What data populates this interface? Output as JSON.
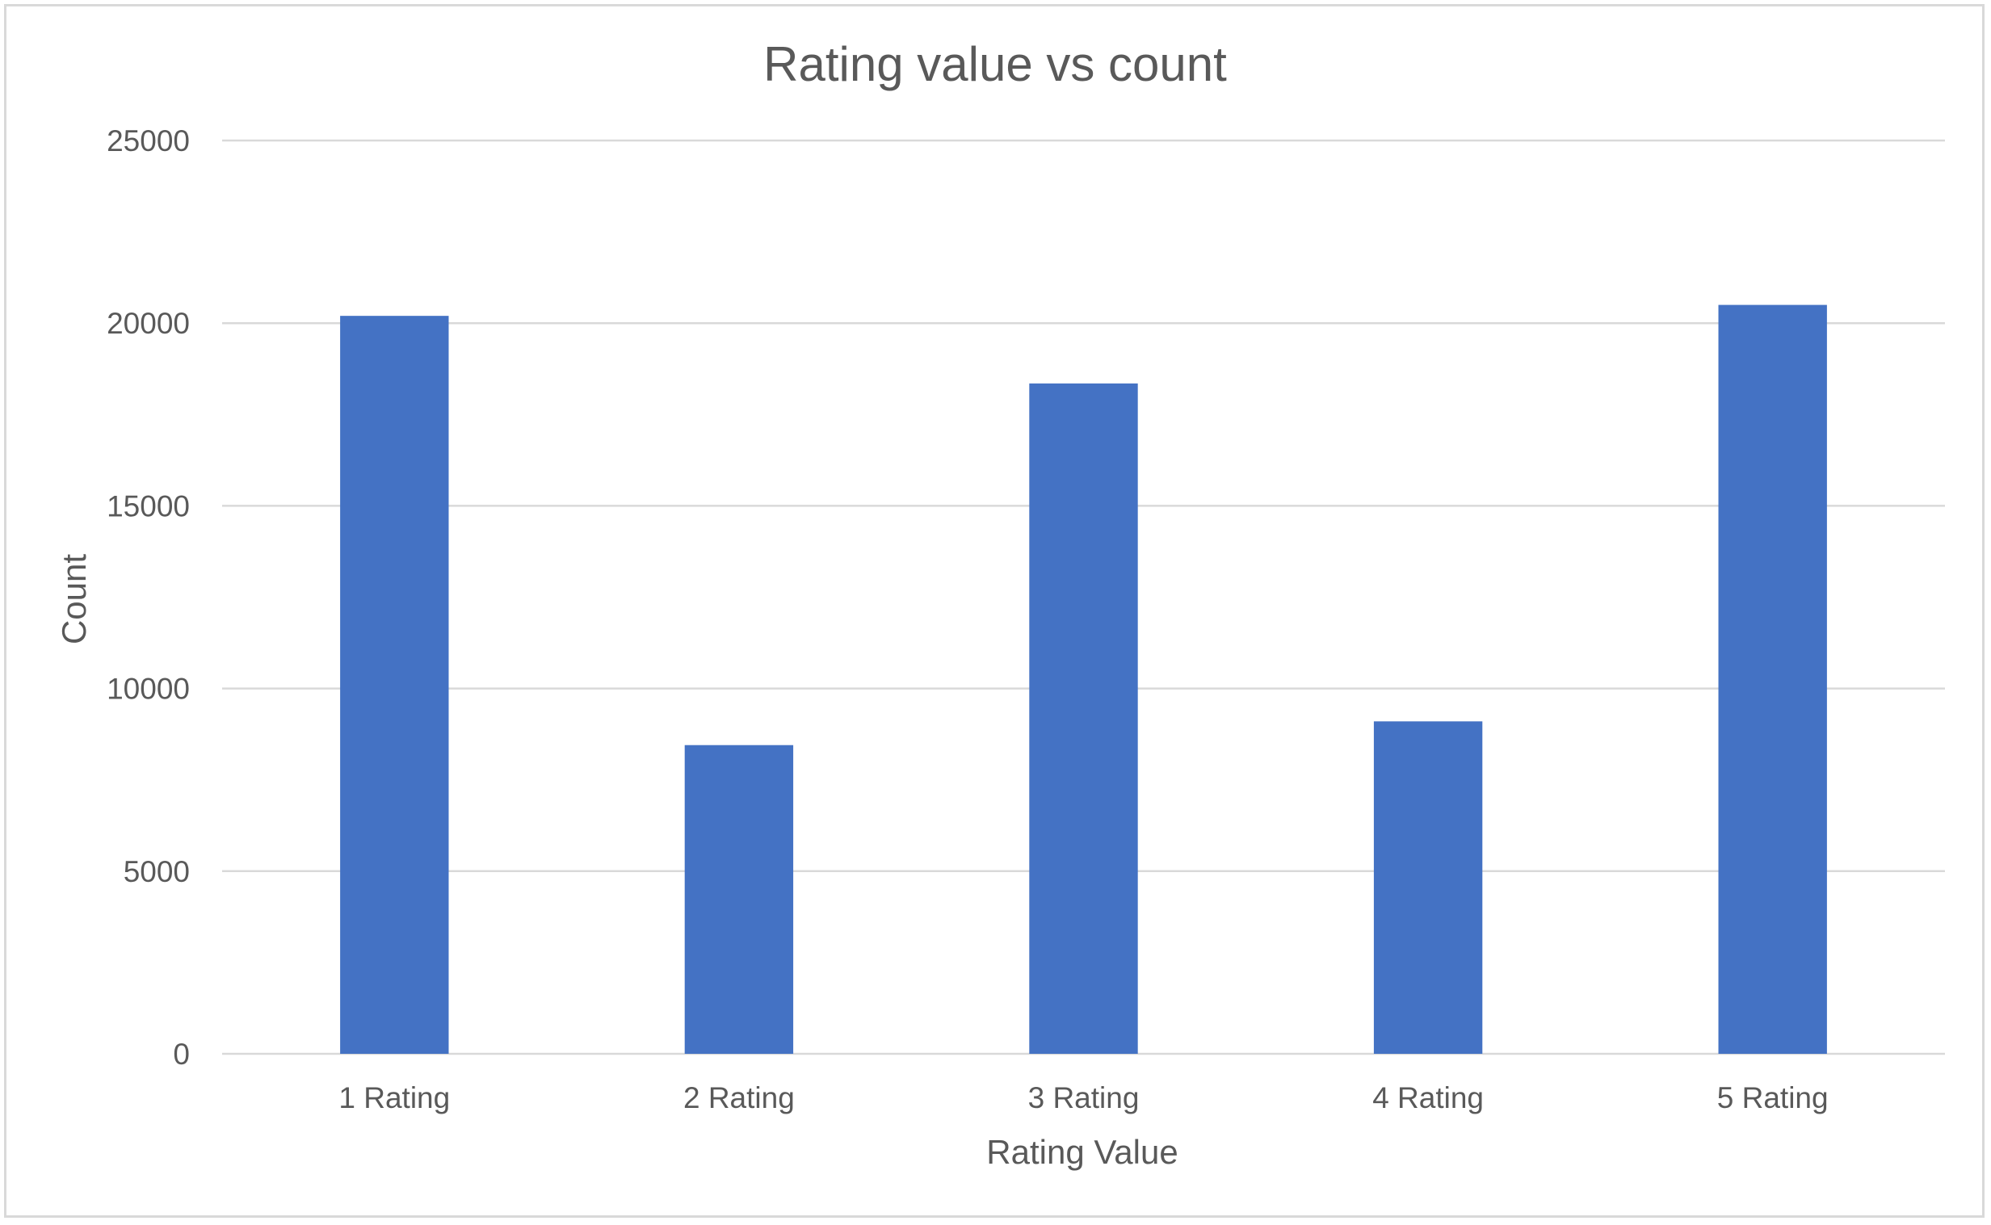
{
  "chart_data": {
    "type": "bar",
    "title": "Rating value vs count",
    "xlabel": "Rating Value",
    "ylabel": "Count",
    "categories": [
      "1 Rating",
      "2 Rating",
      "3 Rating",
      "4 Rating",
      "5 Rating"
    ],
    "values": [
      20200,
      8450,
      18350,
      9100,
      20500
    ],
    "ylim": [
      0,
      25000
    ],
    "yticks": [
      "0",
      "5000",
      "10000",
      "15000",
      "20000",
      "25000"
    ],
    "grid": true,
    "legend": "none",
    "bar_color": "#4472c4"
  }
}
